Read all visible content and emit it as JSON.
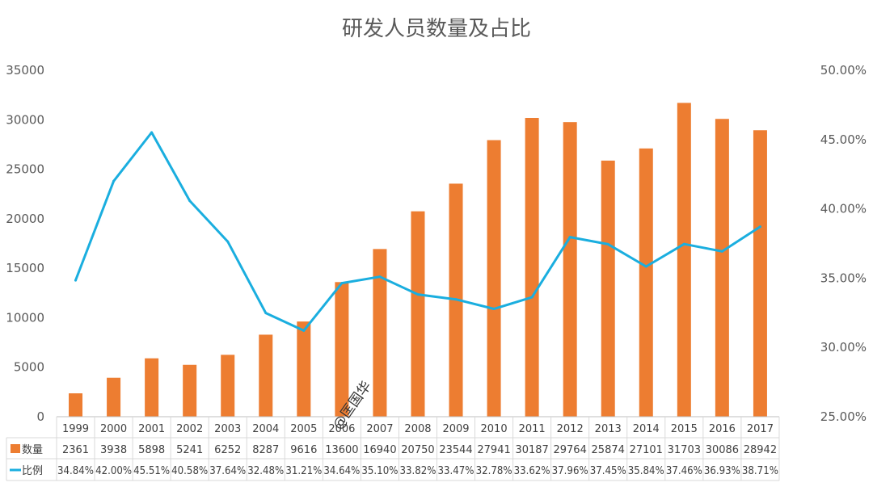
{
  "watermark": "@匡国华",
  "chart_data": {
    "type": "bar+line",
    "title": "研发人员数量及占比",
    "categories": [
      "1999",
      "2000",
      "2001",
      "2002",
      "2003",
      "2004",
      "2005",
      "2006",
      "2007",
      "2008",
      "2009",
      "2010",
      "2011",
      "2012",
      "2013",
      "2014",
      "2015",
      "2016",
      "2017"
    ],
    "series": [
      {
        "name": "数量",
        "type": "bar",
        "axis": "left",
        "color": "#ED7D31",
        "values": [
          2361,
          3938,
          5898,
          5241,
          6252,
          8287,
          9616,
          13600,
          16940,
          20750,
          23544,
          27941,
          30187,
          29764,
          25874,
          27101,
          31703,
          30086,
          28942
        ],
        "labels": [
          "2361",
          "3938",
          "5898",
          "5241",
          "6252",
          "8287",
          "9616",
          "13600",
          "16940",
          "20750",
          "23544",
          "27941",
          "30187",
          "29764",
          "25874",
          "27101",
          "31703",
          "30086",
          "28942"
        ]
      },
      {
        "name": "比例",
        "type": "line",
        "axis": "right",
        "color": "#1AAEDF",
        "values": [
          34.84,
          42.0,
          45.51,
          40.58,
          37.64,
          32.48,
          31.21,
          34.64,
          35.1,
          33.82,
          33.47,
          32.78,
          33.62,
          37.96,
          37.45,
          35.84,
          37.46,
          36.93,
          38.71
        ],
        "labels": [
          "34.84%",
          "42.00%",
          "45.51%",
          "40.58%",
          "37.64%",
          "32.48%",
          "31.21%",
          "34.64%",
          "35.10%",
          "33.82%",
          "33.47%",
          "32.78%",
          "33.62%",
          "37.96%",
          "37.45%",
          "35.84%",
          "37.46%",
          "36.93%",
          "38.71%"
        ]
      }
    ],
    "left_axis": {
      "min": 0,
      "max": 35000,
      "ticks": [
        0,
        5000,
        10000,
        15000,
        20000,
        25000,
        30000,
        35000
      ],
      "tick_labels": [
        "0",
        "5000",
        "10000",
        "15000",
        "20000",
        "25000",
        "30000",
        "35000"
      ]
    },
    "right_axis": {
      "min": 25,
      "max": 50,
      "ticks": [
        25,
        30,
        35,
        40,
        45,
        50
      ],
      "tick_labels": [
        "25.00%",
        "30.00%",
        "35.00%",
        "40.00%",
        "45.00%",
        "50.00%"
      ]
    },
    "grid": false,
    "legend": "data-table"
  }
}
